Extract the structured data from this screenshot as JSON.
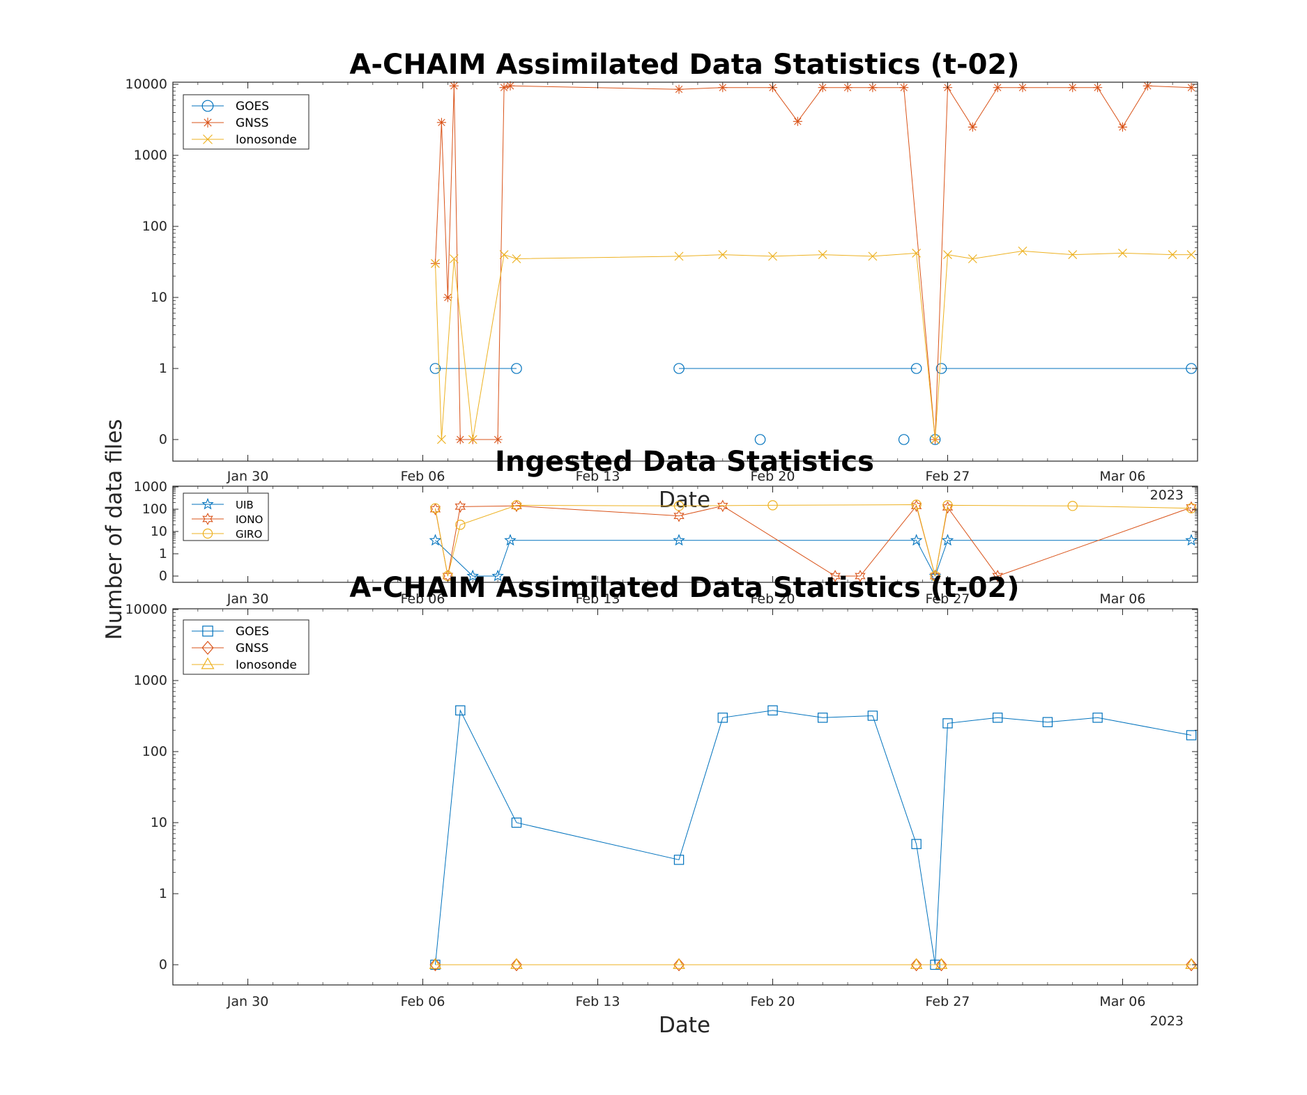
{
  "figure": {
    "ylabel": "Number of data files"
  },
  "chart_data": [
    {
      "type": "line",
      "title": "A-CHAIM Assimilated Data Statistics (t-02)",
      "xlabel": "Date",
      "ylabel": "Number of data files",
      "yscale": "log",
      "yticks": [
        "0",
        "1",
        "10",
        "100",
        "1000",
        "10000"
      ],
      "xticks": [
        "Jan 30",
        "Feb 06",
        "Feb 13",
        "Feb 20",
        "Feb 27",
        "Mar 06"
      ],
      "year_label": "2023",
      "xlim": [
        "2023-01-27",
        "2023-03-09"
      ],
      "legend_position": "top-left",
      "series": [
        {
          "name": "GOES",
          "color": "#0072BD",
          "marker": "circle",
          "segments": [
            {
              "x": [
                "2023-02-06T12",
                "2023-02-09T18"
              ],
              "y": [
                1,
                1
              ]
            },
            {
              "x": [
                "2023-02-16T06",
                "2023-02-25T18"
              ],
              "y": [
                1,
                1
              ]
            },
            {
              "x": [
                "2023-02-26T18",
                "2023-03-08T18"
              ],
              "y": [
                1,
                1
              ]
            }
          ],
          "points": [
            {
              "x": "2023-02-19T12",
              "y": 0
            },
            {
              "x": "2023-02-25T06",
              "y": 0
            },
            {
              "x": "2023-02-26T12",
              "y": 0
            }
          ]
        },
        {
          "name": "GNSS",
          "color": "#D95319",
          "marker": "asterisk",
          "x": [
            "2023-02-06T12",
            "2023-02-06T18",
            "2023-02-07T00",
            "2023-02-07T06",
            "2023-02-07T12",
            "2023-02-08T00",
            "2023-02-09T00",
            "2023-02-09T06",
            "2023-02-09T12",
            "2023-02-16T06",
            "2023-02-18T00",
            "2023-02-20T00",
            "2023-02-21T00",
            "2023-02-22T00",
            "2023-02-23T00",
            "2023-02-24T00",
            "2023-02-25T06",
            "2023-02-26T12",
            "2023-02-27T00",
            "2023-02-28T00",
            "2023-03-01T00",
            "2023-03-02T00",
            "2023-03-04T00",
            "2023-03-05T00",
            "2023-03-06T00",
            "2023-03-07T00",
            "2023-03-08T18"
          ],
          "y": [
            30,
            2900,
            10,
            9500,
            0,
            0,
            0,
            9000,
            9500,
            8500,
            9000,
            9000,
            3000,
            9000,
            9000,
            9000,
            9000,
            0,
            9000,
            2500,
            9000,
            9000,
            9000,
            9000,
            2500,
            9500,
            9000
          ]
        },
        {
          "name": "Ionosonde",
          "color": "#EDB120",
          "marker": "x",
          "x": [
            "2023-02-06T12",
            "2023-02-06T18",
            "2023-02-07T06",
            "2023-02-08T00",
            "2023-02-09T06",
            "2023-02-09T18",
            "2023-02-16T06",
            "2023-02-18T00",
            "2023-02-20T00",
            "2023-02-22T00",
            "2023-02-24T00",
            "2023-02-25T18",
            "2023-02-26T12",
            "2023-02-27T00",
            "2023-02-28T00",
            "2023-03-02T00",
            "2023-03-04T00",
            "2023-03-06T00",
            "2023-03-08T00",
            "2023-03-08T18"
          ],
          "y": [
            30,
            0,
            35,
            0,
            40,
            35,
            38,
            40,
            38,
            40,
            38,
            42,
            0,
            40,
            35,
            45,
            40,
            42,
            40,
            40
          ]
        }
      ]
    },
    {
      "type": "line",
      "title": "Ingested Data Statistics",
      "xlabel": "Date",
      "yscale": "log",
      "yticks": [
        "0",
        "1",
        "10",
        "100",
        "1000"
      ],
      "xticks": [
        "Jan 30",
        "Feb 06",
        "Feb 13",
        "Feb 20",
        "Feb 27",
        "Mar 06"
      ],
      "year_label": "2023",
      "xlim": [
        "2023-01-27",
        "2023-03-09"
      ],
      "legend_position": "top-left",
      "series": [
        {
          "name": "UIB",
          "color": "#0072BD",
          "marker": "star",
          "x": [
            "2023-02-06T12",
            "2023-02-08T00",
            "2023-02-09T00",
            "2023-02-09T12",
            "2023-02-16T06",
            "2023-02-25T18",
            "2023-02-26T12",
            "2023-02-27T00",
            "2023-03-08T18"
          ],
          "y": [
            4,
            0,
            0,
            4,
            4,
            4,
            0,
            4,
            4
          ]
        },
        {
          "name": "IONO",
          "color": "#D95319",
          "marker": "hexagram",
          "x": [
            "2023-02-06T12",
            "2023-02-07T00",
            "2023-02-07T12",
            "2023-02-09T18",
            "2023-02-16T06",
            "2023-02-18T00",
            "2023-02-22T12",
            "2023-02-23T12",
            "2023-02-25T18",
            "2023-02-26T12",
            "2023-02-27T00",
            "2023-03-01T00",
            "2023-03-08T18"
          ],
          "y": [
            100,
            0,
            130,
            140,
            50,
            140,
            0,
            0,
            140,
            0,
            120,
            0,
            120
          ]
        },
        {
          "name": "GIRO",
          "color": "#EDB120",
          "marker": "circle",
          "x": [
            "2023-02-06T12",
            "2023-02-07T00",
            "2023-02-07T12",
            "2023-02-09T18",
            "2023-02-16T06",
            "2023-02-20T00",
            "2023-02-25T18",
            "2023-02-26T12",
            "2023-02-27T00",
            "2023-03-04T00",
            "2023-03-08T18"
          ],
          "y": [
            110,
            0,
            20,
            150,
            140,
            150,
            160,
            0,
            150,
            140,
            110
          ]
        }
      ]
    },
    {
      "type": "line",
      "title": "A-CHAIM Assimilated Data Statistics (t-02)",
      "xlabel": "Date",
      "yscale": "log",
      "yticks": [
        "0",
        "1",
        "10",
        "100",
        "1000",
        "10000"
      ],
      "xticks": [
        "Jan 30",
        "Feb 06",
        "Feb 13",
        "Feb 20",
        "Feb 27",
        "Mar 06"
      ],
      "year_label": "2023",
      "xlim": [
        "2023-01-27",
        "2023-03-09"
      ],
      "legend_position": "top-left",
      "series": [
        {
          "name": "GOES",
          "color": "#0072BD",
          "marker": "square",
          "x": [
            "2023-02-06T12",
            "2023-02-07T12",
            "2023-02-09T18",
            "2023-02-16T06",
            "2023-02-18T00",
            "2023-02-20T00",
            "2023-02-22T00",
            "2023-02-24T00",
            "2023-02-25T18",
            "2023-02-26T12",
            "2023-02-27T00",
            "2023-03-01T00",
            "2023-03-03T00",
            "2023-03-05T00",
            "2023-03-08T18"
          ],
          "y": [
            0,
            380,
            10,
            3,
            300,
            380,
            300,
            320,
            5,
            0,
            250,
            300,
            260,
            300,
            170
          ]
        },
        {
          "name": "GNSS",
          "color": "#D95319",
          "marker": "diamond",
          "x": [
            "2023-02-06T12",
            "2023-02-09T18",
            "2023-02-16T06",
            "2023-02-25T18",
            "2023-02-26T18",
            "2023-03-08T18"
          ],
          "y": [
            0,
            0,
            0,
            0,
            0,
            0
          ]
        },
        {
          "name": "Ionosonde",
          "color": "#EDB120",
          "marker": "triangle",
          "x": [
            "2023-02-06T12",
            "2023-02-09T18",
            "2023-02-16T06",
            "2023-02-25T18",
            "2023-02-26T18",
            "2023-03-08T18"
          ],
          "y": [
            0,
            0,
            0,
            0,
            0,
            0
          ]
        }
      ]
    }
  ]
}
